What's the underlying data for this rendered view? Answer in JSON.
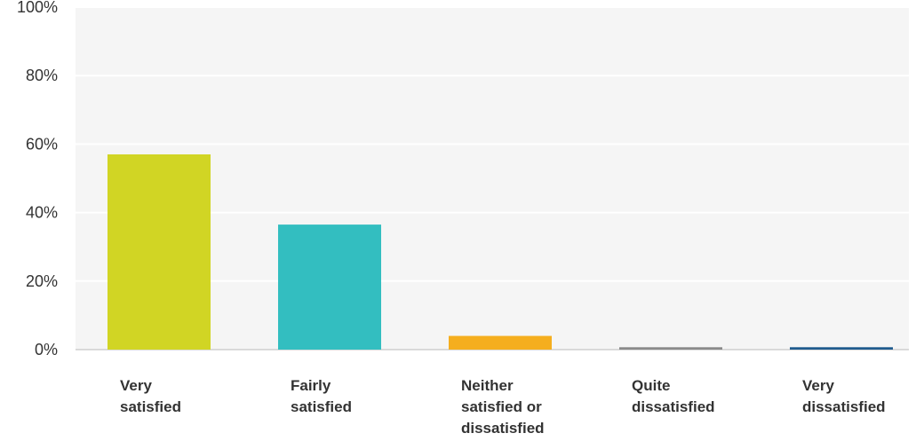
{
  "chart_data": {
    "type": "bar",
    "categories": [
      [
        "Very",
        "satisfied"
      ],
      [
        "Fairly",
        "satisfied"
      ],
      [
        "Neither",
        "satisfied or",
        "dissatisfied"
      ],
      [
        "Quite",
        "dissatisfied"
      ],
      [
        "Very",
        "dissatisfied"
      ]
    ],
    "values": [
      57,
      36.5,
      4,
      0.7,
      0.7
    ],
    "colors": [
      "#d1d524",
      "#33bec0",
      "#f5ae1e",
      "#8a8a8a",
      "#1f5b8e"
    ],
    "yticks": [
      "0%",
      "20%",
      "40%",
      "60%",
      "80%",
      "100%"
    ],
    "ylim": [
      0,
      100
    ],
    "grid": true,
    "background": "#f5f5f5",
    "title": "",
    "xlabel": "",
    "ylabel": ""
  }
}
